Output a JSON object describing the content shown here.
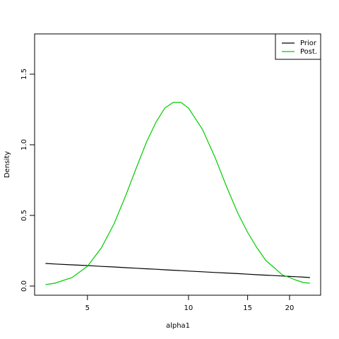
{
  "chart_data": {
    "type": "line",
    "x_label": "alpha1",
    "y_label": "Density",
    "x": [
      3.75,
      4,
      4.5,
      5,
      5.5,
      6,
      6.5,
      7,
      7.5,
      8,
      8.5,
      9,
      9.5,
      10,
      11,
      12,
      13,
      14,
      15,
      16,
      17,
      18,
      19,
      20,
      21,
      22,
      23
    ],
    "series": [
      {
        "name": "Prior",
        "color": "#000000",
        "values": [
          0.16,
          0.156,
          0.15,
          0.145,
          0.139,
          0.135,
          0.13,
          0.126,
          0.122,
          0.119,
          0.115,
          0.112,
          0.109,
          0.106,
          0.101,
          0.096,
          0.092,
          0.088,
          0.084,
          0.08,
          0.077,
          0.074,
          0.071,
          0.068,
          0.066,
          0.063,
          0.06
        ]
      },
      {
        "name": "Post.",
        "color": "#00cd00",
        "values": [
          0.01,
          0.02,
          0.06,
          0.14,
          0.27,
          0.44,
          0.64,
          0.84,
          1.02,
          1.16,
          1.26,
          1.3,
          1.3,
          1.26,
          1.11,
          0.91,
          0.7,
          0.52,
          0.38,
          0.27,
          0.18,
          0.13,
          0.08,
          0.06,
          0.04,
          0.025,
          0.02
        ]
      }
    ],
    "xlog": true,
    "xlim": [
      3.48,
      24.75
    ],
    "xticks": [
      5,
      10,
      15,
      20
    ],
    "ylim": [
      -0.065,
      1.785
    ],
    "yticks": [
      {
        "value": 0,
        "label": "0.0"
      },
      0.5,
      {
        "value": 1,
        "label": "1.0"
      },
      1.5
    ],
    "legend": "topright"
  }
}
